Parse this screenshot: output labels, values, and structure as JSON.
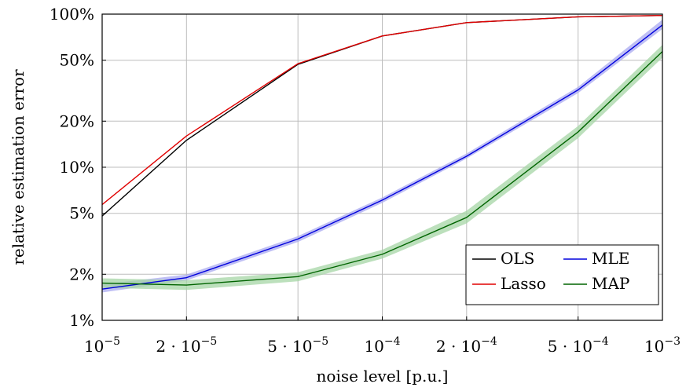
{
  "chart_data": {
    "type": "line",
    "title": "",
    "xlabel": "noise level [p.u.]",
    "ylabel": "relative estimation error",
    "x_scale": "log",
    "y_scale": "log",
    "xlim": [
      1e-05,
      0.001
    ],
    "ylim": [
      0.01,
      1.0
    ],
    "grid": true,
    "legend_position": "bottom-right",
    "x": [
      1e-05,
      2e-05,
      5e-05,
      0.0001,
      0.0002,
      0.0005,
      0.001
    ],
    "x_ticks": [
      {
        "value": 1e-05,
        "mantissa": "",
        "exp": "−5"
      },
      {
        "value": 2e-05,
        "mantissa": "2 · ",
        "exp": "−5"
      },
      {
        "value": 5e-05,
        "mantissa": "5 · ",
        "exp": "−5"
      },
      {
        "value": 0.0001,
        "mantissa": "",
        "exp": "−4"
      },
      {
        "value": 0.0002,
        "mantissa": "2 · ",
        "exp": "−4"
      },
      {
        "value": 0.0005,
        "mantissa": "5 · ",
        "exp": "−4"
      },
      {
        "value": 0.001,
        "mantissa": "",
        "exp": "−3"
      }
    ],
    "y_ticks": [
      {
        "value": 0.01,
        "label": "1%"
      },
      {
        "value": 0.02,
        "label": "2%"
      },
      {
        "value": 0.05,
        "label": "5%"
      },
      {
        "value": 0.1,
        "label": "10%"
      },
      {
        "value": 0.2,
        "label": "20%"
      },
      {
        "value": 0.5,
        "label": "50%"
      },
      {
        "value": 1.0,
        "label": "100%"
      }
    ],
    "series": [
      {
        "name": "OLS",
        "color": "#000000",
        "values": [
          0.048,
          0.15,
          0.47,
          0.72,
          0.88,
          0.96,
          0.98
        ]
      },
      {
        "name": "Lasso",
        "color": "#e00000",
        "values": [
          0.057,
          0.16,
          0.475,
          0.72,
          0.88,
          0.96,
          0.98
        ]
      },
      {
        "name": "MLE",
        "color": "#0000dd",
        "band_color": "#a9a9f0",
        "values": [
          0.016,
          0.019,
          0.034,
          0.061,
          0.118,
          0.32,
          0.85
        ],
        "lower": [
          0.0152,
          0.0182,
          0.0325,
          0.0585,
          0.114,
          0.305,
          0.8
        ],
        "upper": [
          0.0172,
          0.0199,
          0.0355,
          0.0635,
          0.123,
          0.335,
          0.92
        ]
      },
      {
        "name": "MAP",
        "color": "#006400",
        "band_color": "#a6d6a6",
        "values": [
          0.0175,
          0.017,
          0.0193,
          0.027,
          0.047,
          0.17,
          0.57
        ],
        "lower": [
          0.0163,
          0.0158,
          0.018,
          0.0253,
          0.043,
          0.155,
          0.52
        ],
        "upper": [
          0.0188,
          0.0183,
          0.0206,
          0.0289,
          0.052,
          0.186,
          0.63
        ]
      }
    ],
    "legend": {
      "columns": [
        [
          "OLS",
          "Lasso"
        ],
        [
          "MLE",
          "MAP"
        ]
      ]
    }
  }
}
